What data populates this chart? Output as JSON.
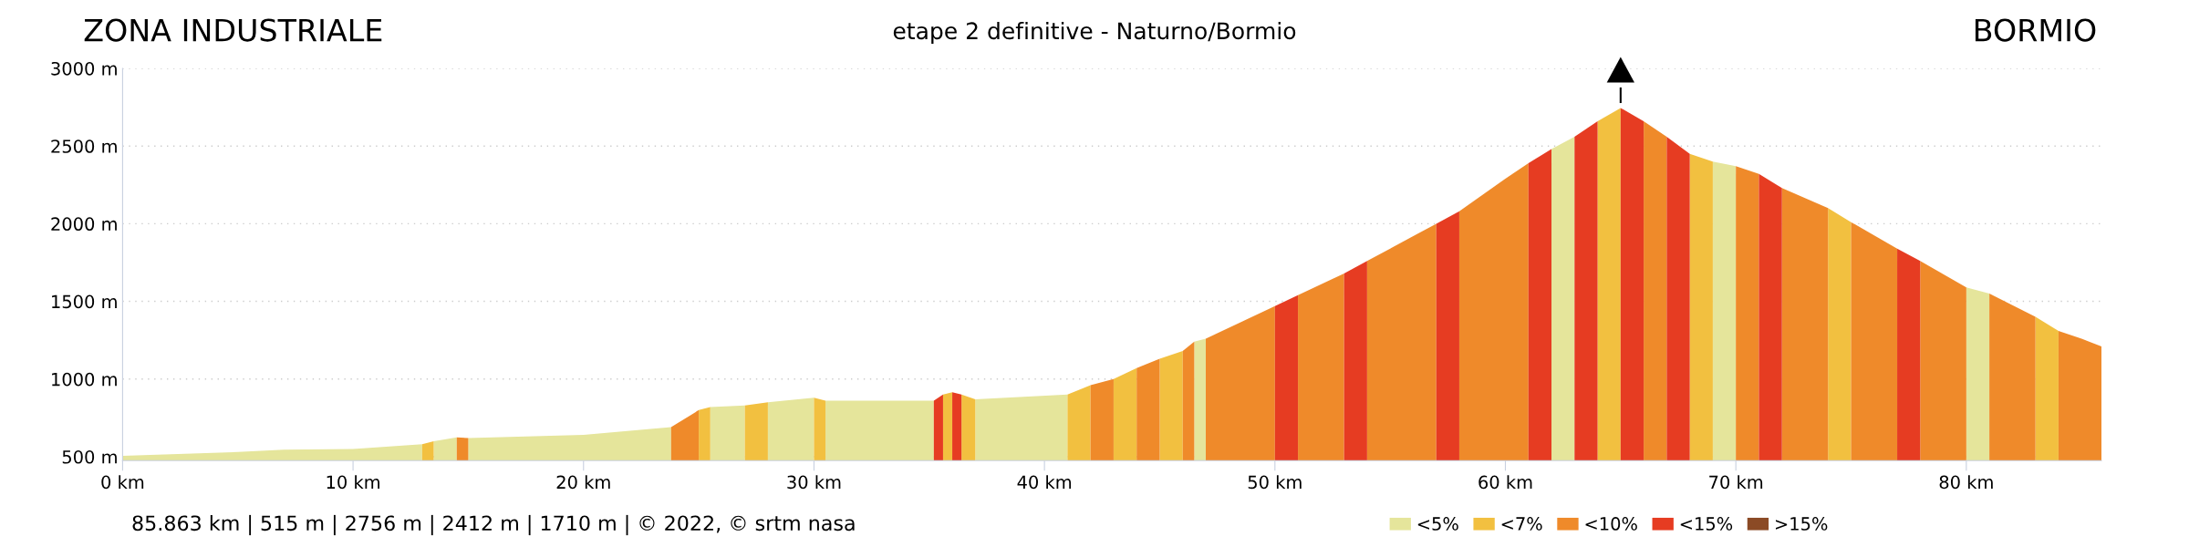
{
  "chart_data": {
    "type": "area",
    "title": "etape 2 definitive - Naturno/Bormio",
    "annotations": [
      "ZONA INDUSTRIALE",
      "BORMIO",
      "85.863 km | 515 m | 2756 m | 2412 m | 1710 m | © 2022, © srtm nasa"
    ],
    "xlim": [
      0,
      85.863
    ],
    "ylim": [
      475,
      3000
    ],
    "xticks": [
      {
        "value": 0,
        "label": "0 km"
      },
      {
        "value": 10,
        "label": "10 km"
      },
      {
        "value": 20,
        "label": "20 km"
      },
      {
        "value": 30,
        "label": "30 km"
      },
      {
        "value": 40,
        "label": "40 km"
      },
      {
        "value": 50,
        "label": "50 km"
      },
      {
        "value": 60,
        "label": "60 km"
      },
      {
        "value": 70,
        "label": "70 km"
      },
      {
        "value": 80,
        "label": "80 km"
      }
    ],
    "yticks": [
      {
        "value": 500,
        "label": "500 m"
      },
      {
        "value": 1000,
        "label": "1000 m"
      },
      {
        "value": 1500,
        "label": "1500 m"
      },
      {
        "value": 2000,
        "label": "2000 m"
      },
      {
        "value": 2500,
        "label": "2500 m"
      },
      {
        "value": 3000,
        "label": "3000 m"
      }
    ],
    "grid": "y",
    "legend": "bottom right",
    "series": [
      {
        "name": "<5%",
        "color": "#e5e59b",
        "x": [
          0,
          5,
          7,
          10,
          13,
          null,
          13.5,
          14.5,
          null,
          15,
          20,
          23.8,
          null,
          25.5,
          27,
          null,
          28,
          30,
          null,
          30.5,
          35.2,
          null,
          37,
          41,
          null,
          46.5,
          47,
          null,
          62,
          63,
          null,
          69,
          70,
          null,
          80,
          81
        ],
        "values": [
          505,
          530,
          545,
          550,
          580,
          null,
          600,
          625,
          null,
          620,
          640,
          690,
          null,
          820,
          830,
          null,
          850,
          880,
          null,
          860,
          860,
          null,
          870,
          900,
          null,
          1240,
          1260,
          null,
          2480,
          2560,
          null,
          2400,
          2370,
          null,
          1590,
          1550
        ]
      },
      {
        "name": "<7%",
        "color": "#f2c040",
        "x": [
          13,
          13.5,
          null,
          25,
          25.5,
          null,
          27,
          28,
          null,
          30,
          30.5,
          null,
          35.6,
          36,
          null,
          36.4,
          37,
          null,
          41,
          42,
          null,
          43,
          44,
          null,
          45,
          46,
          null,
          64,
          65,
          null,
          68,
          69,
          null,
          74,
          75,
          null,
          83,
          84
        ],
        "values": [
          580,
          600,
          null,
          800,
          820,
          null,
          830,
          850,
          null,
          880,
          860,
          null,
          900,
          915,
          null,
          900,
          870,
          null,
          900,
          960,
          null,
          1000,
          1070,
          null,
          1130,
          1180,
          null,
          2660,
          2745,
          null,
          2450,
          2400,
          null,
          2100,
          2010,
          null,
          1400,
          1310
        ]
      },
      {
        "name": "<10%",
        "color": "#ef8a2a",
        "x": [
          14.5,
          15,
          null,
          23.8,
          25,
          null,
          42,
          43,
          null,
          44,
          45,
          null,
          46,
          46.5,
          null,
          47,
          50,
          null,
          51,
          53,
          null,
          54,
          57,
          null,
          58,
          60,
          61,
          null,
          66,
          67,
          null,
          70,
          71,
          null,
          72,
          74,
          null,
          75,
          77,
          null,
          78,
          80,
          null,
          81,
          83,
          null,
          84,
          85,
          85.863
        ],
        "values": [
          625,
          620,
          null,
          690,
          800,
          null,
          960,
          1000,
          null,
          1070,
          1130,
          null,
          1180,
          1240,
          null,
          1260,
          1470,
          null,
          1540,
          1680,
          null,
          1760,
          2000,
          null,
          2080,
          2290,
          2390,
          null,
          2660,
          2560,
          null,
          2370,
          2320,
          null,
          2230,
          2100,
          null,
          2010,
          1840,
          null,
          1760,
          1590,
          null,
          1550,
          1400,
          null,
          1310,
          1260,
          1210
        ]
      },
      {
        "name": "<15%",
        "color": "#e63c22",
        "x": [
          35.2,
          35.6,
          null,
          36,
          36.4,
          null,
          50,
          51,
          null,
          53,
          54,
          null,
          57,
          58,
          null,
          61,
          62,
          null,
          63,
          64,
          null,
          65,
          66,
          null,
          67,
          68,
          null,
          71,
          72,
          null,
          77,
          78
        ],
        "values": [
          860,
          900,
          null,
          915,
          900,
          null,
          1470,
          1540,
          null,
          1680,
          1760,
          null,
          2000,
          2080,
          null,
          2390,
          2480,
          null,
          2560,
          2660,
          null,
          2745,
          2660,
          null,
          2560,
          2450,
          null,
          2320,
          2230,
          null,
          1840,
          1760
        ]
      },
      {
        "name": ">15%",
        "color": "#8b4a25"
      }
    ]
  }
}
